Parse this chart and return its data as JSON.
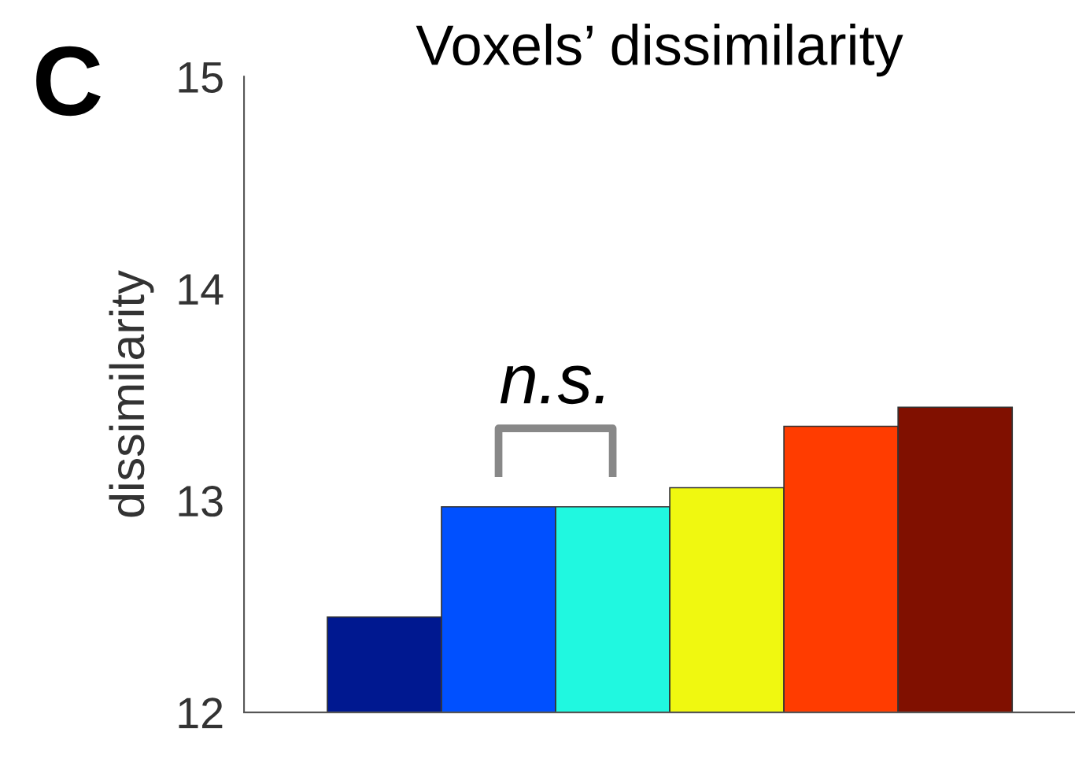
{
  "chart_data": {
    "type": "bar",
    "title": "Voxels’ dissimilarity",
    "ylabel": "dissimilarity",
    "categories": [
      null,
      null,
      null,
      null,
      null,
      null
    ],
    "values": [
      12.45,
      12.97,
      12.97,
      13.06,
      13.35,
      13.44
    ],
    "colors": [
      "#001890",
      "#0050ff",
      "#20f8e0",
      "#f0f810",
      "#ff3c00",
      "#801000"
    ],
    "ylim": [
      12,
      15
    ],
    "yticks": [
      12,
      13,
      14,
      15
    ],
    "grid": false,
    "legend": false,
    "annotations": [
      "C",
      "n.s."
    ]
  }
}
